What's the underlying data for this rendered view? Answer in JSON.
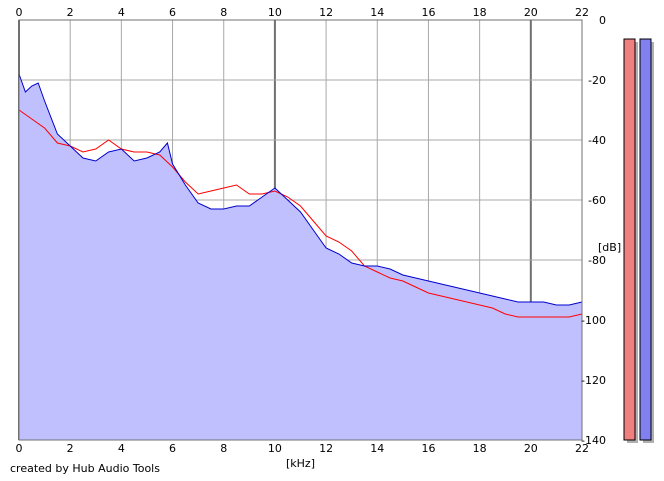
{
  "chart_data": {
    "type": "area",
    "xlabel": "[kHz]",
    "ylabel": "[dB]",
    "xlim": [
      0,
      22
    ],
    "ylim": [
      -140,
      0
    ],
    "x_ticks": [
      0,
      2,
      4,
      6,
      8,
      10,
      12,
      14,
      16,
      18,
      20,
      22
    ],
    "y_ticks": [
      0,
      -20,
      -40,
      -60,
      -80,
      -100,
      -120,
      -140
    ],
    "grid": true,
    "series": [
      {
        "color": "#0000cc",
        "fill": "#c0c0ff",
        "x": [
          0,
          0.25,
          0.5,
          0.75,
          1,
          1.5,
          2,
          2.5,
          3,
          3.5,
          4,
          4.5,
          5,
          5.5,
          5.8,
          6,
          6.5,
          7,
          7.5,
          8,
          8.5,
          9,
          9.5,
          10,
          10.5,
          11,
          11.5,
          12,
          12.5,
          13,
          13.5,
          14,
          14.5,
          15,
          15.5,
          16,
          16.5,
          17,
          17.5,
          18,
          18.5,
          19,
          19.5,
          20,
          20.5,
          21,
          21.5,
          22
        ],
        "y": [
          -18,
          -24,
          -22,
          -21,
          -27,
          -38,
          -42,
          -46,
          -47,
          -44,
          -43,
          -47,
          -46,
          -44,
          -41,
          -48,
          -55,
          -61,
          -63,
          -63,
          -62,
          -62,
          -59,
          -56,
          -60,
          -64,
          -70,
          -76,
          -78,
          -81,
          -82,
          -82,
          -83,
          -85,
          -86,
          -87,
          -88,
          -89,
          -90,
          -91,
          -92,
          -93,
          -94,
          -94,
          -94,
          -95,
          -95,
          -94
        ]
      },
      {
        "color": "#ff0000",
        "x": [
          0,
          0.5,
          1,
          1.5,
          2,
          2.5,
          3,
          3.5,
          4,
          4.5,
          5,
          5.5,
          6,
          6.5,
          7,
          7.5,
          8,
          8.5,
          9,
          9.5,
          10,
          10.5,
          11,
          11.5,
          12,
          12.5,
          13,
          13.5,
          14,
          14.5,
          15,
          15.5,
          16,
          16.5,
          17,
          17.5,
          18,
          18.5,
          19,
          19.5,
          20,
          20.5,
          21,
          21.5,
          22
        ],
        "y": [
          -30,
          -33,
          -36,
          -41,
          -42,
          -44,
          -43,
          -40,
          -43,
          -44,
          -44,
          -45,
          -49,
          -54,
          -58,
          -57,
          -56,
          -55,
          -58,
          -58,
          -57,
          -59,
          -62,
          -67,
          -72,
          -74,
          -77,
          -82,
          -84,
          -86,
          -87,
          -89,
          -91,
          -92,
          -93,
          -94,
          -95,
          -96,
          -98,
          -99,
          -99,
          -99,
          -99,
          -99,
          -98
        ]
      }
    ],
    "level_meters": [
      {
        "color": "#f08080",
        "value": -3
      },
      {
        "color": "#8080f0",
        "value": -3
      }
    ]
  },
  "credit": "created by Hub Audio Tools"
}
